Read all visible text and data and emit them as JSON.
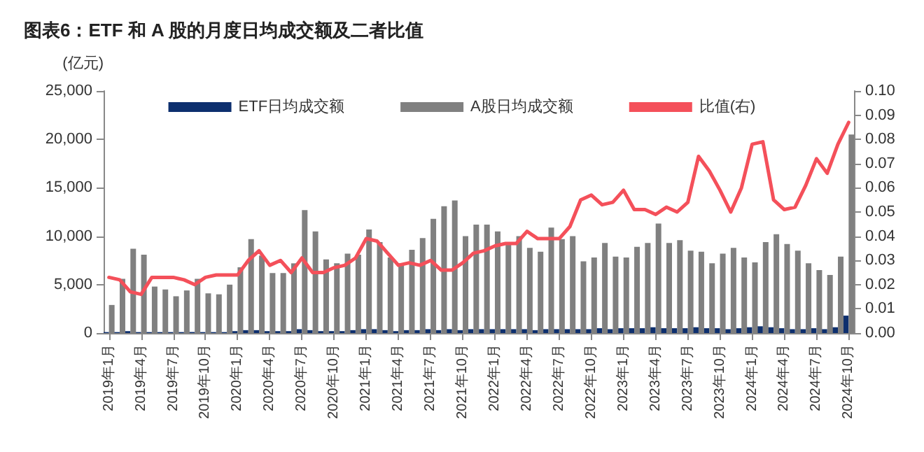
{
  "chart_data": {
    "type": "bar",
    "title": "图表6：ETF 和 A 股的月度日均成交额及二者比值",
    "ylabel": "(亿元)",
    "categories": [
      "2019年1月",
      null,
      null,
      "2019年4月",
      null,
      null,
      "2019年7月",
      null,
      null,
      "2019年10月",
      null,
      null,
      "2020年1月",
      null,
      null,
      "2020年4月",
      null,
      null,
      "2020年7月",
      null,
      null,
      "2020年10月",
      null,
      null,
      "2021年1月",
      null,
      null,
      "2021年4月",
      null,
      null,
      "2021年7月",
      null,
      null,
      "2021年10月",
      null,
      null,
      "2022年1月",
      null,
      null,
      "2022年4月",
      null,
      null,
      "2022年7月",
      null,
      null,
      "2022年10月",
      null,
      null,
      "2023年1月",
      null,
      null,
      "2023年4月",
      null,
      null,
      "2023年7月",
      null,
      null,
      "2023年10月",
      null,
      null,
      "2024年1月",
      null,
      null,
      "2024年4月",
      null,
      null,
      "2024年7月",
      null,
      null,
      "2024年10月"
    ],
    "series": [
      {
        "name": "ETF日均成交额",
        "color": "#0d2f6e",
        "values": [
          100,
          100,
          200,
          100,
          100,
          100,
          100,
          100,
          100,
          100,
          100,
          100,
          200,
          300,
          300,
          200,
          200,
          200,
          400,
          300,
          200,
          200,
          200,
          300,
          400,
          400,
          300,
          200,
          300,
          300,
          400,
          300,
          400,
          300,
          400,
          400,
          400,
          400,
          400,
          400,
          300,
          400,
          400,
          400,
          400,
          400,
          500,
          400,
          500,
          500,
          500,
          600,
          500,
          500,
          500,
          600,
          500,
          500,
          400,
          500,
          600,
          700,
          600,
          500,
          400,
          400,
          500,
          400,
          600,
          1800
        ]
      },
      {
        "name": "A股日均成交额",
        "color": "#808080",
        "values": [
          2900,
          5600,
          8700,
          8100,
          4800,
          4500,
          3800,
          4400,
          5600,
          4100,
          4000,
          5000,
          6800,
          9700,
          8000,
          6200,
          6200,
          7200,
          12700,
          10500,
          7600,
          7200,
          8200,
          8100,
          10700,
          9400,
          7800,
          7200,
          8600,
          9800,
          11800,
          13100,
          13700,
          10000,
          11200,
          11200,
          10500,
          9400,
          10000,
          8800,
          8400,
          10900,
          9700,
          10000,
          7400,
          7800,
          9300,
          7900,
          7800,
          8900,
          9300,
          11300,
          9300,
          9600,
          8500,
          8400,
          7200,
          8200,
          8800,
          7800,
          7300,
          9400,
          10200,
          9200,
          8500,
          7200,
          6500,
          6000,
          7900,
          20500
        ]
      },
      {
        "name": "比值(右)",
        "type": "line",
        "axis": "y2",
        "color": "#f4505a",
        "values": [
          0.023,
          0.022,
          0.017,
          0.016,
          0.023,
          0.023,
          0.023,
          0.022,
          0.02,
          0.023,
          0.024,
          0.024,
          0.024,
          0.03,
          0.034,
          0.028,
          0.03,
          0.025,
          0.031,
          0.025,
          0.025,
          0.027,
          0.028,
          0.031,
          0.039,
          0.038,
          0.033,
          0.028,
          0.029,
          0.028,
          0.03,
          0.026,
          0.026,
          0.029,
          0.033,
          0.034,
          0.036,
          0.037,
          0.037,
          0.042,
          0.039,
          0.039,
          0.039,
          0.044,
          0.055,
          0.057,
          0.053,
          0.054,
          0.059,
          0.051,
          0.051,
          0.049,
          0.052,
          0.05,
          0.054,
          0.073,
          0.067,
          0.059,
          0.05,
          0.06,
          0.078,
          0.079,
          0.055,
          0.051,
          0.052,
          0.061,
          0.072,
          0.066,
          0.078,
          0.087
        ]
      }
    ],
    "ylim": [
      0,
      25000
    ],
    "yticks": [
      0,
      {
        "value": 5000,
        "label": "5,000"
      },
      {
        "value": 10000,
        "label": "10,000"
      },
      {
        "value": 15000,
        "label": "15,000"
      },
      {
        "value": 20000,
        "label": "20,000"
      },
      {
        "value": 25000,
        "label": "25,000"
      }
    ],
    "y2lim": [
      0,
      0.1
    ],
    "y2ticks": [
      {
        "value": 0,
        "label": "0.00"
      },
      {
        "value": 0.01,
        "label": "0.01"
      },
      {
        "value": 0.02,
        "label": "0.02"
      },
      {
        "value": 0.03,
        "label": "0.03"
      },
      {
        "value": 0.04,
        "label": "0.04"
      },
      {
        "value": 0.05,
        "label": "0.05"
      },
      {
        "value": 0.06,
        "label": "0.06"
      },
      {
        "value": 0.07,
        "label": "0.07"
      },
      {
        "value": 0.08,
        "label": "0.08"
      },
      {
        "value": 0.09,
        "label": "0.09"
      },
      {
        "value": 0.1,
        "label": "0.10"
      }
    ],
    "grid": false,
    "legend": "top",
    "marker": "none",
    "line_style": "solid"
  }
}
